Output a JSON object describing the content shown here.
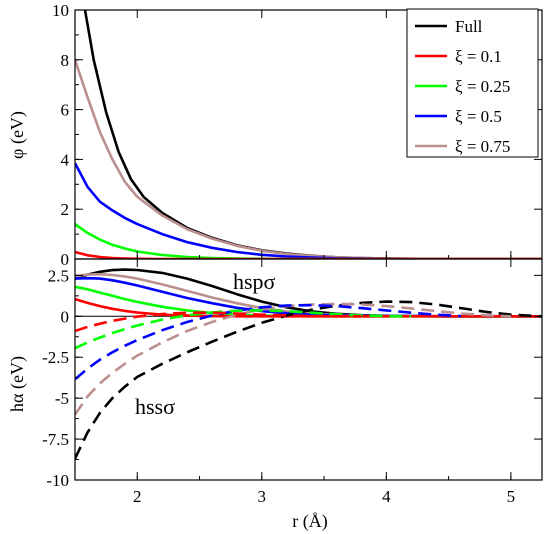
{
  "chart_data": [
    {
      "type": "line",
      "ylabel": "φ (eV)",
      "xlim": [
        1.5,
        5.25
      ],
      "ylim": [
        0,
        10
      ],
      "yticks": [
        "0",
        "2",
        "4",
        "6",
        "8",
        "10"
      ],
      "legend": {
        "placement": "top-right",
        "entries": [
          "Full",
          "ξ = 0.1",
          "ξ = 0.25",
          "ξ = 0.5",
          "ξ = 0.75"
        ]
      },
      "series": [
        {
          "name": "Full",
          "color": "#000000",
          "x": [
            1.58,
            1.65,
            1.75,
            1.85,
            1.95,
            2.05,
            2.2,
            2.4,
            2.6,
            2.8,
            3.0,
            3.2,
            3.4,
            3.6,
            3.8,
            4.0,
            4.5,
            5.0,
            5.25
          ],
          "y": [
            10.0,
            8.0,
            5.9,
            4.3,
            3.2,
            2.5,
            1.85,
            1.25,
            0.85,
            0.55,
            0.35,
            0.22,
            0.13,
            0.07,
            0.04,
            0.02,
            0.0,
            0.0,
            0.0
          ]
        },
        {
          "name": "ξ = 0.75",
          "color": "#bc8f8f",
          "x": [
            1.5,
            1.6,
            1.7,
            1.8,
            1.9,
            2.0,
            2.2,
            2.4,
            2.6,
            2.8,
            3.0,
            3.2,
            3.4,
            3.6,
            3.8,
            4.0,
            4.5,
            5.0,
            5.25
          ],
          "y": [
            8.0,
            6.5,
            5.1,
            4.0,
            3.1,
            2.5,
            1.75,
            1.2,
            0.82,
            0.53,
            0.33,
            0.2,
            0.12,
            0.07,
            0.04,
            0.02,
            0.0,
            0.0,
            0.0
          ]
        },
        {
          "name": "ξ = 0.5",
          "color": "#0000ff",
          "x": [
            1.5,
            1.6,
            1.7,
            1.8,
            1.9,
            2.0,
            2.2,
            2.4,
            2.6,
            2.8,
            3.0,
            3.2,
            3.4,
            3.6,
            3.8,
            4.0,
            4.5,
            5.0,
            5.25
          ],
          "y": [
            3.85,
            2.9,
            2.3,
            1.95,
            1.65,
            1.4,
            1.0,
            0.68,
            0.45,
            0.28,
            0.17,
            0.1,
            0.06,
            0.03,
            0.02,
            0.01,
            0.0,
            0.0,
            0.0
          ]
        },
        {
          "name": "ξ = 0.25",
          "color": "#00ff00",
          "x": [
            1.5,
            1.6,
            1.7,
            1.8,
            1.9,
            2.0,
            2.2,
            2.4,
            2.6,
            2.8,
            3.0,
            3.2,
            3.5,
            4.0,
            4.5,
            5.0,
            5.25
          ],
          "y": [
            1.4,
            1.05,
            0.78,
            0.57,
            0.42,
            0.3,
            0.16,
            0.08,
            0.04,
            0.02,
            0.01,
            0.0,
            0.0,
            0.0,
            0.0,
            0.0,
            0.0
          ]
        },
        {
          "name": "ξ = 0.1",
          "color": "#ff0000",
          "x": [
            1.5,
            1.6,
            1.7,
            1.8,
            1.9,
            2.0,
            2.2,
            2.4,
            2.6,
            3.0,
            3.5,
            4.0,
            4.5,
            5.0,
            5.25
          ],
          "y": [
            0.28,
            0.15,
            0.08,
            0.04,
            0.02,
            0.01,
            0.0,
            0.0,
            0.0,
            0.0,
            0.0,
            0.0,
            0.0,
            0.0,
            0.0
          ]
        }
      ]
    },
    {
      "type": "line",
      "xlabel": "r (Å)",
      "ylabel": "hα (eV)",
      "xlim": [
        1.5,
        5.25
      ],
      "ylim": [
        -10,
        3.5
      ],
      "xticks": [
        "2",
        "3",
        "4",
        "5"
      ],
      "yticks": [
        "2.5",
        "0",
        "-2.5",
        "-5",
        "-7.5",
        "-10"
      ],
      "annotations": [
        "hspσ",
        "hssσ"
      ],
      "series": [
        {
          "name": "Full",
          "kind": "hspσ",
          "color": "#000000",
          "dash": false,
          "x": [
            1.5,
            1.6,
            1.7,
            1.8,
            1.9,
            2.0,
            2.2,
            2.4,
            2.6,
            2.8,
            3.0,
            3.2,
            3.4,
            3.6,
            3.8,
            4.0,
            4.2,
            4.5,
            4.8,
            5.0,
            5.25
          ],
          "y": [
            2.3,
            2.55,
            2.72,
            2.82,
            2.85,
            2.83,
            2.65,
            2.3,
            1.85,
            1.35,
            0.9,
            0.55,
            0.3,
            0.15,
            0.07,
            0.03,
            0.01,
            0.0,
            0.0,
            0.0,
            0.0
          ]
        },
        {
          "name": "ξ = 0.75",
          "kind": "hspσ",
          "color": "#bc8f8f",
          "dash": false,
          "x": [
            1.5,
            1.6,
            1.7,
            1.8,
            1.9,
            2.0,
            2.2,
            2.4,
            2.6,
            2.8,
            3.0,
            3.2,
            3.4,
            3.6,
            3.8,
            4.0,
            4.5,
            5.0,
            5.25
          ],
          "y": [
            2.45,
            2.55,
            2.57,
            2.52,
            2.43,
            2.3,
            1.95,
            1.55,
            1.15,
            0.8,
            0.5,
            0.3,
            0.16,
            0.08,
            0.04,
            0.02,
            0.0,
            0.0,
            0.0
          ]
        },
        {
          "name": "ξ = 0.5",
          "kind": "hspσ",
          "color": "#0000ff",
          "dash": false,
          "x": [
            1.5,
            1.6,
            1.7,
            1.8,
            1.9,
            2.0,
            2.2,
            2.4,
            2.6,
            2.8,
            3.0,
            3.2,
            3.4,
            3.6,
            4.0,
            4.5,
            5.0,
            5.25
          ],
          "y": [
            2.3,
            2.33,
            2.3,
            2.2,
            2.05,
            1.88,
            1.5,
            1.12,
            0.8,
            0.52,
            0.32,
            0.18,
            0.1,
            0.05,
            0.01,
            0.0,
            0.0,
            0.0
          ]
        },
        {
          "name": "ξ = 0.25",
          "kind": "hspσ",
          "color": "#00ff00",
          "dash": false,
          "x": [
            1.5,
            1.6,
            1.7,
            1.8,
            1.9,
            2.0,
            2.2,
            2.4,
            2.6,
            2.8,
            3.0,
            3.2,
            3.5,
            4.0,
            4.5,
            5.0,
            5.25
          ],
          "y": [
            1.8,
            1.65,
            1.45,
            1.25,
            1.05,
            0.88,
            0.58,
            0.36,
            0.2,
            0.1,
            0.05,
            0.02,
            0.0,
            0.0,
            0.0,
            0.0,
            0.0
          ]
        },
        {
          "name": "ξ = 0.1",
          "kind": "hspσ",
          "color": "#ff0000",
          "dash": false,
          "x": [
            1.5,
            1.6,
            1.7,
            1.8,
            1.9,
            2.0,
            2.2,
            2.4,
            2.6,
            2.8,
            3.0,
            3.5,
            4.0,
            4.5,
            5.0,
            5.25
          ],
          "y": [
            1.05,
            0.82,
            0.62,
            0.46,
            0.33,
            0.23,
            0.1,
            0.04,
            0.01,
            0.0,
            0.0,
            0.0,
            0.0,
            0.0,
            0.0,
            0.0
          ]
        },
        {
          "name": "Full",
          "kind": "hssσ",
          "color": "#000000",
          "dash": true,
          "x": [
            1.5,
            1.6,
            1.7,
            1.8,
            1.9,
            2.0,
            2.2,
            2.4,
            2.6,
            2.8,
            3.0,
            3.2,
            3.4,
            3.6,
            3.8,
            4.0,
            4.2,
            4.4,
            4.6,
            4.8,
            5.0,
            5.25
          ],
          "y": [
            -8.7,
            -7.1,
            -5.9,
            -5.0,
            -4.3,
            -3.7,
            -2.9,
            -2.2,
            -1.55,
            -0.95,
            -0.4,
            0.05,
            0.4,
            0.65,
            0.82,
            0.9,
            0.87,
            0.72,
            0.5,
            0.27,
            0.1,
            0.0
          ]
        },
        {
          "name": "ξ = 0.75",
          "kind": "hssσ",
          "color": "#bc8f8f",
          "dash": true,
          "x": [
            1.5,
            1.6,
            1.7,
            1.8,
            1.9,
            2.0,
            2.2,
            2.4,
            2.6,
            2.8,
            3.0,
            3.2,
            3.4,
            3.6,
            3.8,
            4.0,
            4.2,
            4.4,
            4.6,
            4.8,
            5.0
          ],
          "y": [
            -6.0,
            -4.9,
            -4.1,
            -3.45,
            -2.9,
            -2.4,
            -1.6,
            -0.9,
            -0.35,
            0.1,
            0.42,
            0.62,
            0.72,
            0.75,
            0.72,
            0.62,
            0.48,
            0.32,
            0.17,
            0.06,
            0.0
          ]
        },
        {
          "name": "ξ = 0.5",
          "kind": "hssσ",
          "color": "#0000ff",
          "dash": true,
          "x": [
            1.5,
            1.6,
            1.7,
            1.8,
            1.9,
            2.0,
            2.2,
            2.4,
            2.6,
            2.8,
            3.0,
            3.2,
            3.4,
            3.6,
            3.8,
            4.0,
            4.2,
            4.4,
            4.6
          ],
          "y": [
            -3.85,
            -3.2,
            -2.65,
            -2.2,
            -1.8,
            -1.45,
            -0.85,
            -0.35,
            0.05,
            0.35,
            0.55,
            0.66,
            0.68,
            0.62,
            0.5,
            0.36,
            0.22,
            0.1,
            0.02
          ]
        },
        {
          "name": "ξ = 0.25",
          "kind": "hssσ",
          "color": "#00ff00",
          "dash": true,
          "x": [
            1.5,
            1.6,
            1.7,
            1.8,
            1.9,
            2.0,
            2.2,
            2.4,
            2.6,
            2.8,
            3.0,
            3.2,
            3.4,
            3.6,
            3.8,
            4.0,
            4.2
          ],
          "y": [
            -1.95,
            -1.6,
            -1.3,
            -1.02,
            -0.78,
            -0.56,
            -0.2,
            0.06,
            0.24,
            0.34,
            0.36,
            0.31,
            0.22,
            0.12,
            0.05,
            0.01,
            0.0
          ]
        },
        {
          "name": "ξ = 0.1",
          "kind": "hssσ",
          "color": "#ff0000",
          "dash": true,
          "x": [
            1.5,
            1.6,
            1.7,
            1.8,
            1.9,
            2.0,
            2.2,
            2.4,
            2.6,
            2.8,
            3.0,
            3.2,
            3.4,
            3.6,
            3.8
          ],
          "y": [
            -0.9,
            -0.65,
            -0.45,
            -0.28,
            -0.14,
            -0.02,
            0.14,
            0.22,
            0.22,
            0.17,
            0.1,
            0.05,
            0.02,
            0.0,
            0.0
          ]
        }
      ]
    }
  ]
}
